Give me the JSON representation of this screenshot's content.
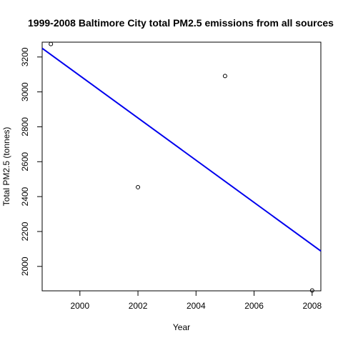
{
  "chart_data": {
    "type": "scatter",
    "title": "1999-2008 Baltimore City total PM2.5 emissions from all sources",
    "xlabel": "Year",
    "ylabel": "Total PM2.5 (tonnes)",
    "xlim": [
      1998.7,
      2008.3
    ],
    "ylim": [
      1860,
      3285
    ],
    "grid": false,
    "legend": "none",
    "x_ticks": [
      2000,
      2002,
      2004,
      2006,
      2008
    ],
    "y_ticks": [
      2000,
      2200,
      2400,
      2600,
      2800,
      3000,
      3200
    ],
    "x_tick_labels": [
      "2000",
      "2002",
      "2004",
      "2006",
      "2008"
    ],
    "y_tick_labels": [
      "2000",
      "2200",
      "2400",
      "2600",
      "2800",
      "3000",
      "3200"
    ],
    "points": [
      {
        "x": 1999,
        "y": 3274
      },
      {
        "x": 2002,
        "y": 2454
      },
      {
        "x": 2005,
        "y": 3091
      },
      {
        "x": 2008,
        "y": 1862
      }
    ],
    "regression_line": {
      "color": "#0000ee",
      "from": {
        "x": 1998.7,
        "y": 3250
      },
      "to": {
        "x": 2008.3,
        "y": 2088
      }
    },
    "point_color": "#000000"
  }
}
